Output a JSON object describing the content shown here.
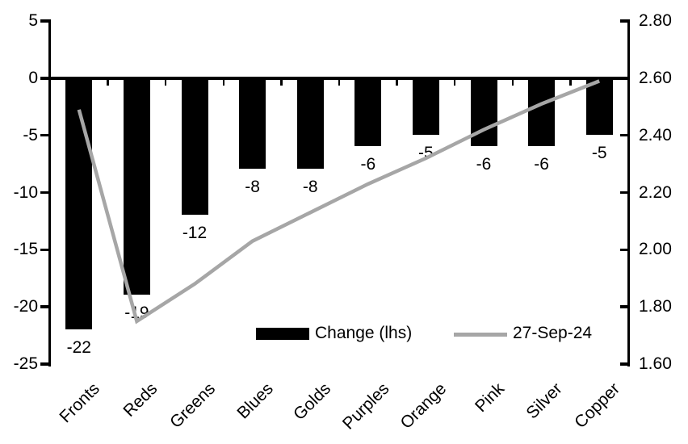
{
  "chart_data": {
    "type": "combo-bar-line",
    "categories": [
      "Fronts",
      "Reds",
      "Greens",
      "Blues",
      "Golds",
      "Purples",
      "Orange",
      "Pink",
      "Silver",
      "Copper"
    ],
    "series": [
      {
        "name": "Change (lhs)",
        "type": "bar",
        "axis": "left",
        "color": "#000000",
        "values": [
          -22,
          -19,
          -12,
          -8,
          -8,
          -6,
          -5,
          -6,
          -6,
          -5
        ],
        "data_labels": [
          "-22",
          "-19",
          "-12",
          "-8",
          "-8",
          "-6",
          "-5",
          "-6",
          "-6",
          "-5"
        ]
      },
      {
        "name": "27-Sep-24",
        "type": "line",
        "axis": "right",
        "color": "#a6a6a6",
        "values": [
          2.49,
          1.75,
          1.88,
          2.03,
          2.13,
          2.23,
          2.32,
          2.42,
          2.51,
          2.59
        ]
      }
    ],
    "left_axis": {
      "min": -25,
      "max": 5,
      "tick_labels": [
        "5",
        "0",
        "-5",
        "-10",
        "-15",
        "-20",
        "-25"
      ],
      "tick_values": [
        5,
        0,
        -5,
        -10,
        -15,
        -20,
        -25
      ]
    },
    "right_axis": {
      "min": 1.6,
      "max": 2.8,
      "tick_labels": [
        "2.80",
        "2.60",
        "2.40",
        "2.20",
        "2.00",
        "1.80",
        "1.60"
      ],
      "tick_values": [
        2.8,
        2.6,
        2.4,
        2.2,
        2.0,
        1.8,
        1.6
      ]
    },
    "title": "",
    "legend_position": "bottom-inside",
    "grid": false,
    "axis_color": "#000000",
    "background_color": "#ffffff"
  }
}
